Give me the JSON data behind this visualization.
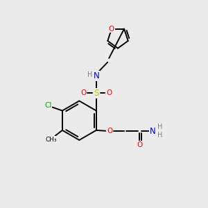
{
  "background_color": "#ebebeb",
  "bond_color": "#000000",
  "atom_colors": {
    "O": "#ff0000",
    "N": "#0000cd",
    "S": "#cccc00",
    "Cl": "#00aa00",
    "H": "#808080",
    "C": "#000000"
  },
  "figsize": [
    3.0,
    3.0
  ],
  "dpi": 100
}
